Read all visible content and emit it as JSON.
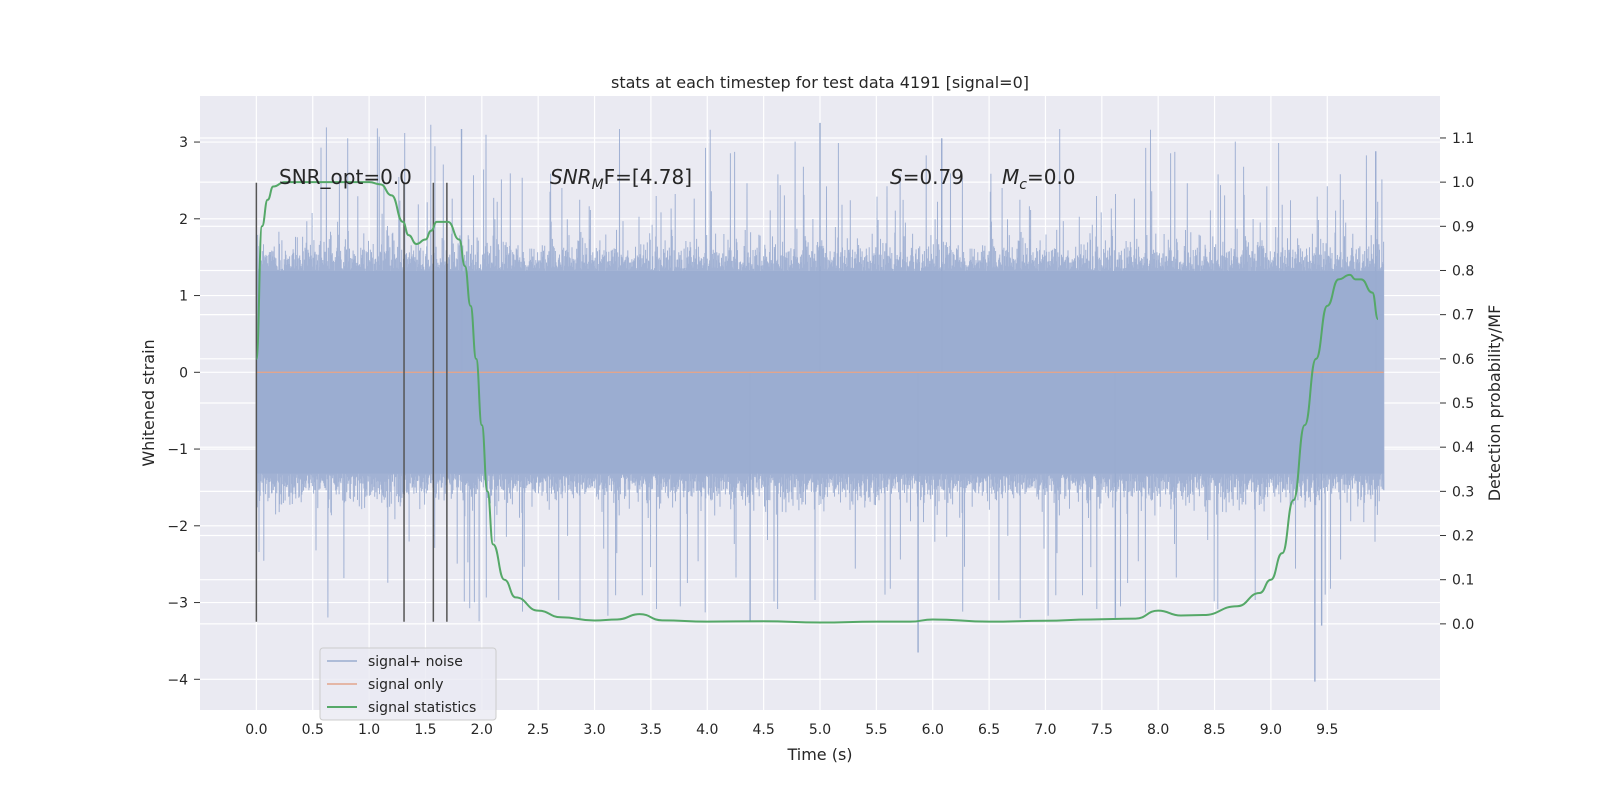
{
  "chart_data": {
    "type": "line",
    "title": "stats at each timestep for test data 4191 [signal=0]",
    "xlabel": "Time (s)",
    "ylabel": "Whitened strain",
    "y2label": "Detection probability/MF",
    "xlim": [
      -0.5,
      10.5
    ],
    "ylim": [
      -4.4,
      3.6
    ],
    "y2lim": [
      -0.195,
      1.195
    ],
    "x_ticks": [
      0.0,
      0.5,
      1.0,
      1.5,
      2.0,
      2.5,
      3.0,
      3.5,
      4.0,
      4.5,
      5.0,
      5.5,
      6.0,
      6.5,
      7.0,
      7.5,
      8.0,
      8.5,
      9.0,
      9.5
    ],
    "x_tick_labels": [
      "0.0",
      "0.5",
      "1.0",
      "1.5",
      "2.0",
      "2.5",
      "3.0",
      "3.5",
      "4.0",
      "4.5",
      "5.0",
      "5.5",
      "6.0",
      "6.5",
      "7.0",
      "7.5",
      "8.0",
      "8.5",
      "9.0",
      "9.5"
    ],
    "y_ticks": [
      3,
      2,
      1,
      0,
      -1,
      -2,
      -3,
      -4
    ],
    "y_tick_labels": [
      "3",
      "2",
      "1",
      "0",
      "−1",
      "−2",
      "−3",
      "−4"
    ],
    "y2_ticks": [
      1.1,
      1.0,
      0.9,
      0.8,
      0.7,
      0.6,
      0.5,
      0.4,
      0.3,
      0.2,
      0.1,
      0.0
    ],
    "y2_tick_labels": [
      "1.1",
      "1.0",
      "0.9",
      "0.8",
      "0.7",
      "0.6",
      "0.5",
      "0.4",
      "0.3",
      "0.2",
      "0.1",
      "0.0"
    ],
    "grid": true,
    "legend_position": "lower-left",
    "annotations": {
      "snr_opt": "SNR_opt=0.0",
      "snr_mf_base": "SNR",
      "snr_mf_sub": "M",
      "snr_mf_rest": "F=[4.78]",
      "s_var": "S",
      "s_rest": "=0.79",
      "mc_var": "M",
      "mc_sub": "c",
      "mc_rest": "=0.0"
    },
    "marker_lines_x": [
      0.0,
      1.31,
      1.57,
      1.69
    ],
    "marker_lines_range": [
      -3.25,
      2.47
    ],
    "series": [
      {
        "name": "signal+ noise",
        "color": "#9aacd0",
        "x_range": [
          0.0,
          10.0
        ],
        "envelope": {
          "core_upper": 1.32,
          "core_lower": -1.32,
          "mid_upper": 0.75,
          "mid_lower": -0.95,
          "spike_max_approx": 3.25,
          "spike_min_approx": -4.05
        }
      },
      {
        "name": "signal only",
        "color": "#e1a58d",
        "x": [
          0.0,
          10.0
        ],
        "y": [
          0.0,
          0.0
        ]
      },
      {
        "name": "signal statistics",
        "color": "#55a868",
        "axis": "right",
        "x": [
          0.0,
          0.05,
          0.1,
          0.15,
          0.25,
          0.4,
          0.6,
          0.8,
          1.0,
          1.1,
          1.2,
          1.3,
          1.35,
          1.42,
          1.5,
          1.55,
          1.6,
          1.7,
          1.8,
          1.85,
          1.9,
          1.95,
          2.0,
          2.05,
          2.1,
          2.2,
          2.3,
          2.5,
          2.7,
          3.0,
          3.2,
          3.4,
          3.6,
          4.0,
          4.5,
          5.0,
          5.5,
          5.8,
          6.0,
          6.5,
          7.0,
          7.4,
          7.6,
          7.8,
          8.0,
          8.2,
          8.4,
          8.7,
          8.9,
          9.0,
          9.1,
          9.2,
          9.3,
          9.4,
          9.5,
          9.6,
          9.7,
          9.75,
          9.8,
          9.9,
          9.95
        ],
        "y": [
          0.6,
          0.9,
          0.96,
          0.99,
          1.0,
          1.0,
          1.0,
          1.0,
          1.0,
          0.995,
          0.97,
          0.91,
          0.88,
          0.86,
          0.87,
          0.89,
          0.91,
          0.91,
          0.87,
          0.81,
          0.72,
          0.6,
          0.45,
          0.3,
          0.18,
          0.1,
          0.06,
          0.03,
          0.015,
          0.0075,
          0.01,
          0.022,
          0.008,
          0.005,
          0.006,
          0.003,
          0.005,
          0.005,
          0.01,
          0.005,
          0.007,
          0.01,
          0.011,
          0.012,
          0.03,
          0.019,
          0.02,
          0.04,
          0.07,
          0.1,
          0.16,
          0.28,
          0.45,
          0.6,
          0.72,
          0.78,
          0.79,
          0.78,
          0.78,
          0.75,
          0.69
        ]
      }
    ]
  }
}
